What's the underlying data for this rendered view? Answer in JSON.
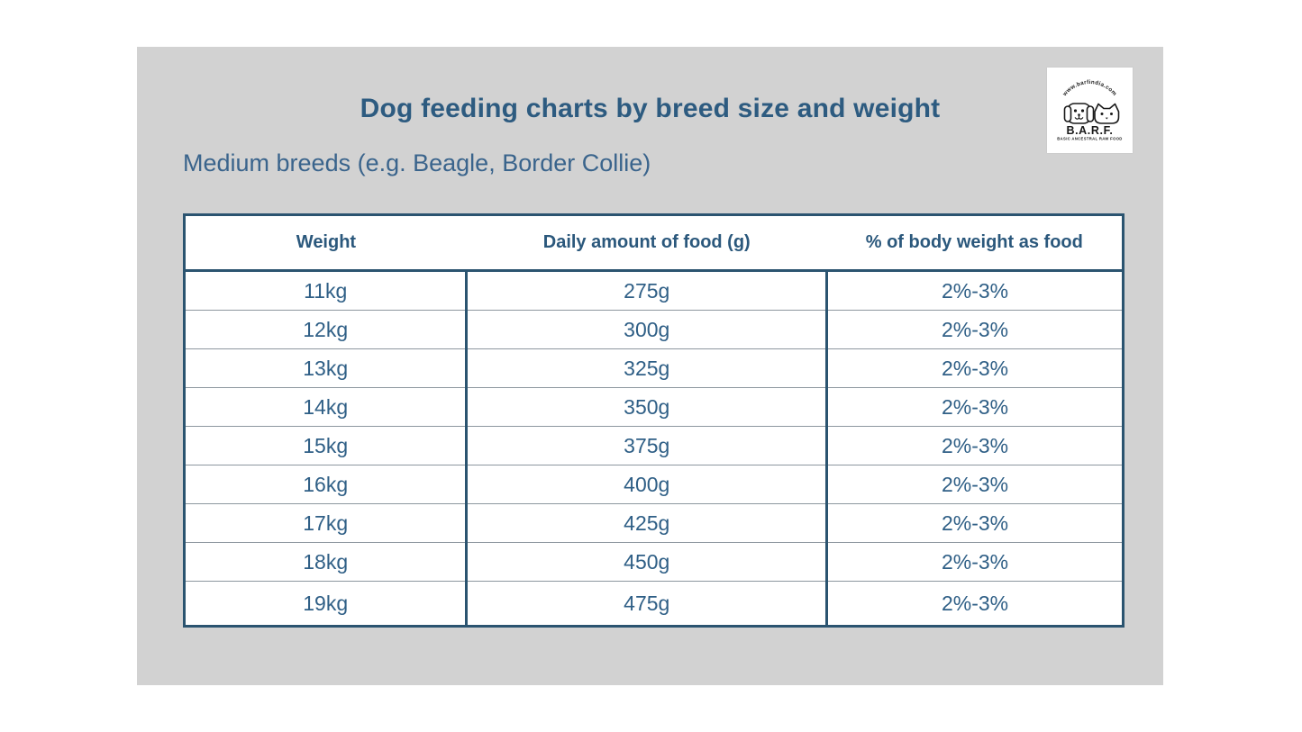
{
  "page": {
    "title": "Dog feeding charts by breed size and weight",
    "subtitle": "Medium breeds (e.g. Beagle, Border Collie)"
  },
  "logo": {
    "arc_text": "www.barfindia.com",
    "name": "B.A.R.F.",
    "tagline": "BASIC ANCESTRAL RAW FOOD",
    "icon": "dog-and-cat-line-art-icon"
  },
  "table": {
    "headers": [
      "Weight",
      "Daily amount of food (g)",
      "% of body weight as food"
    ],
    "rows": [
      [
        "11kg",
        "275g",
        "2%-3%"
      ],
      [
        "12kg",
        "300g",
        "2%-3%"
      ],
      [
        "13kg",
        "325g",
        "2%-3%"
      ],
      [
        "14kg",
        "350g",
        "2%-3%"
      ],
      [
        "15kg",
        "375g",
        "2%-3%"
      ],
      [
        "16kg",
        "400g",
        "2%-3%"
      ],
      [
        "17kg",
        "425g",
        "2%-3%"
      ],
      [
        "18kg",
        "450g",
        "2%-3%"
      ],
      [
        "19kg",
        "475g",
        "2%-3%"
      ]
    ]
  },
  "colors": {
    "panel_background": "#d2d2d2",
    "title_blue": "#2d5b80",
    "subtitle_blue": "#3a648c",
    "cell_text_blue": "#2f5f86",
    "table_border_blue": "#2b5470",
    "row_divider_gray": "#8d979f",
    "logo_ink": "#1a1a1a"
  },
  "chart_data": {
    "type": "table",
    "title": "Dog feeding charts by breed size and weight",
    "subtitle": "Medium breeds (e.g. Beagle, Border Collie)",
    "columns": [
      "Weight",
      "Daily amount of food (g)",
      "% of body weight as food"
    ],
    "rows": [
      [
        "11kg",
        "275g",
        "2%-3%"
      ],
      [
        "12kg",
        "300g",
        "2%-3%"
      ],
      [
        "13kg",
        "325g",
        "2%-3%"
      ],
      [
        "14kg",
        "350g",
        "2%-3%"
      ],
      [
        "15kg",
        "375g",
        "2%-3%"
      ],
      [
        "16kg",
        "400g",
        "2%-3%"
      ],
      [
        "17kg",
        "425g",
        "2%-3%"
      ],
      [
        "18kg",
        "450g",
        "2%-3%"
      ],
      [
        "19kg",
        "475g",
        "2%-3%"
      ]
    ],
    "weights_kg": [
      11,
      12,
      13,
      14,
      15,
      16,
      17,
      18,
      19
    ],
    "daily_food_g": [
      275,
      300,
      325,
      350,
      375,
      400,
      425,
      450,
      475
    ],
    "percent_body_weight_as_food": "2%-3%"
  }
}
